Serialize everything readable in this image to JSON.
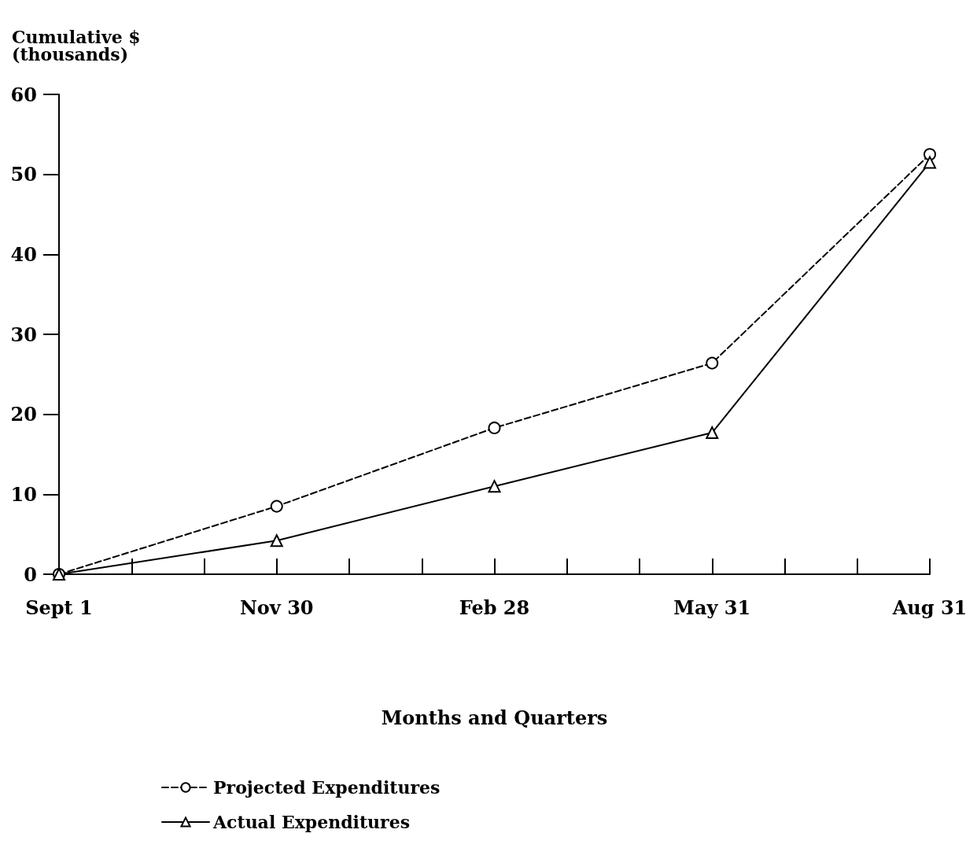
{
  "chart_data": {
    "type": "line",
    "ylabel": "Cumulative $\n(thousands)",
    "xlabel": "Months and Quarters",
    "categories": [
      "Sept 1",
      null,
      null,
      "Nov 30",
      null,
      null,
      "Feb 28",
      null,
      null,
      "May 31",
      null,
      null,
      "Aug 31"
    ],
    "ylim": [
      0,
      60
    ],
    "yticks": [
      0,
      10,
      20,
      30,
      40,
      50,
      60
    ],
    "grid": false,
    "legend": "bottom",
    "series": [
      {
        "name": "Projected Expenditures",
        "color": "#000000",
        "marker": "circle",
        "line_style": "dashed",
        "x": [
          "Sept 1",
          "Nov 30",
          "Feb 28",
          "May 31",
          "Aug 31"
        ],
        "values": [
          0,
          8.5,
          18.3,
          26.4,
          52.5
        ]
      },
      {
        "name": "Actual Expenditures",
        "color": "#000000",
        "marker": "triangle",
        "line_style": "solid",
        "x": [
          "Sept 1",
          "Nov 30",
          "Feb 28",
          "May 31",
          "Aug 31"
        ],
        "values": [
          0,
          4.2,
          11,
          17.7,
          51.5
        ]
      }
    ]
  }
}
